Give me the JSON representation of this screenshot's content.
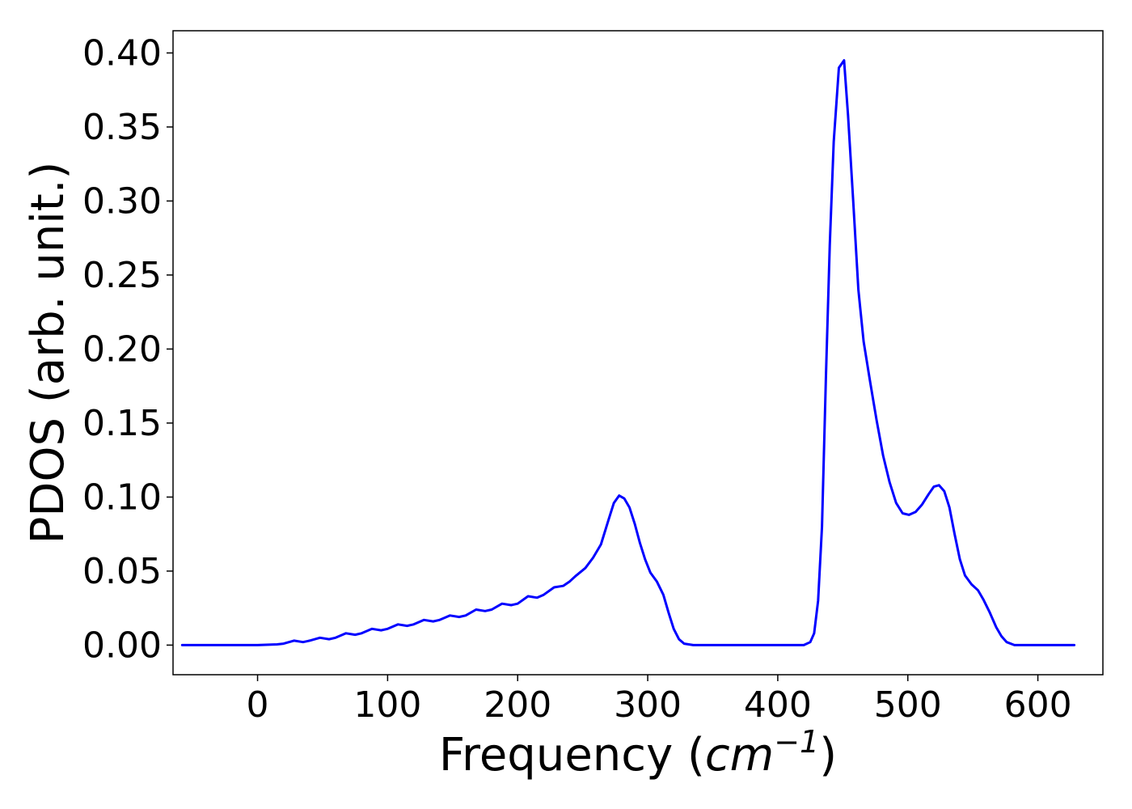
{
  "chart_data": {
    "type": "line",
    "title": "",
    "xlabel": "Frequency (",
    "xlabel_unit_base": "cm",
    "xlabel_unit_exponent": "−1",
    "xlabel_close": ")",
    "ylabel": "PDOS (arb. unit.)",
    "xlim": [
      -65,
      650
    ],
    "ylim": [
      -0.02,
      0.415
    ],
    "x_ticks": [
      0,
      100,
      200,
      300,
      400,
      500,
      600
    ],
    "x_tick_labels": [
      "0",
      "100",
      "200",
      "300",
      "400",
      "500",
      "600"
    ],
    "y_ticks": [
      0.0,
      0.05,
      0.1,
      0.15,
      0.2,
      0.25,
      0.3,
      0.35,
      0.4
    ],
    "y_tick_labels": [
      "0.00",
      "0.05",
      "0.10",
      "0.15",
      "0.20",
      "0.25",
      "0.30",
      "0.35",
      "0.40"
    ],
    "grid": false,
    "legend": "none",
    "series": [
      {
        "color": "#0000ff",
        "points": [
          [
            -58,
            0.0
          ],
          [
            -20,
            0.0
          ],
          [
            0,
            0.0
          ],
          [
            15,
            0.0005
          ],
          [
            20,
            0.001
          ],
          [
            28,
            0.003
          ],
          [
            35,
            0.002
          ],
          [
            40,
            0.003
          ],
          [
            48,
            0.005
          ],
          [
            55,
            0.004
          ],
          [
            60,
            0.005
          ],
          [
            68,
            0.008
          ],
          [
            75,
            0.007
          ],
          [
            80,
            0.008
          ],
          [
            88,
            0.011
          ],
          [
            95,
            0.01
          ],
          [
            100,
            0.011
          ],
          [
            108,
            0.014
          ],
          [
            115,
            0.013
          ],
          [
            120,
            0.014
          ],
          [
            128,
            0.017
          ],
          [
            135,
            0.016
          ],
          [
            140,
            0.017
          ],
          [
            148,
            0.02
          ],
          [
            155,
            0.019
          ],
          [
            160,
            0.02
          ],
          [
            168,
            0.024
          ],
          [
            175,
            0.023
          ],
          [
            180,
            0.024
          ],
          [
            188,
            0.028
          ],
          [
            195,
            0.027
          ],
          [
            200,
            0.028
          ],
          [
            208,
            0.033
          ],
          [
            215,
            0.032
          ],
          [
            220,
            0.034
          ],
          [
            228,
            0.039
          ],
          [
            235,
            0.04
          ],
          [
            240,
            0.043
          ],
          [
            245,
            0.047
          ],
          [
            252,
            0.052
          ],
          [
            258,
            0.059
          ],
          [
            264,
            0.068
          ],
          [
            270,
            0.085
          ],
          [
            274,
            0.096
          ],
          [
            278,
            0.101
          ],
          [
            282,
            0.099
          ],
          [
            286,
            0.093
          ],
          [
            290,
            0.082
          ],
          [
            294,
            0.069
          ],
          [
            298,
            0.058
          ],
          [
            302,
            0.049
          ],
          [
            307,
            0.043
          ],
          [
            312,
            0.034
          ],
          [
            316,
            0.022
          ],
          [
            320,
            0.011
          ],
          [
            324,
            0.004
          ],
          [
            328,
            0.001
          ],
          [
            335,
            0.0
          ],
          [
            380,
            0.0
          ],
          [
            420,
            0.0
          ],
          [
            425,
            0.002
          ],
          [
            428,
            0.008
          ],
          [
            431,
            0.03
          ],
          [
            434,
            0.08
          ],
          [
            437,
            0.18
          ],
          [
            440,
            0.27
          ],
          [
            443,
            0.34
          ],
          [
            447,
            0.39
          ],
          [
            451,
            0.395
          ],
          [
            454,
            0.358
          ],
          [
            458,
            0.3
          ],
          [
            462,
            0.24
          ],
          [
            466,
            0.205
          ],
          [
            471,
            0.178
          ],
          [
            476,
            0.152
          ],
          [
            481,
            0.128
          ],
          [
            486,
            0.11
          ],
          [
            491,
            0.096
          ],
          [
            496,
            0.089
          ],
          [
            501,
            0.088
          ],
          [
            506,
            0.09
          ],
          [
            511,
            0.095
          ],
          [
            516,
            0.102
          ],
          [
            520,
            0.107
          ],
          [
            524,
            0.108
          ],
          [
            528,
            0.104
          ],
          [
            532,
            0.093
          ],
          [
            536,
            0.075
          ],
          [
            540,
            0.058
          ],
          [
            544,
            0.047
          ],
          [
            549,
            0.041
          ],
          [
            554,
            0.037
          ],
          [
            558,
            0.031
          ],
          [
            563,
            0.022
          ],
          [
            568,
            0.012
          ],
          [
            572,
            0.006
          ],
          [
            576,
            0.002
          ],
          [
            582,
            0.0
          ],
          [
            600,
            0.0
          ],
          [
            628,
            0.0
          ]
        ]
      }
    ]
  }
}
